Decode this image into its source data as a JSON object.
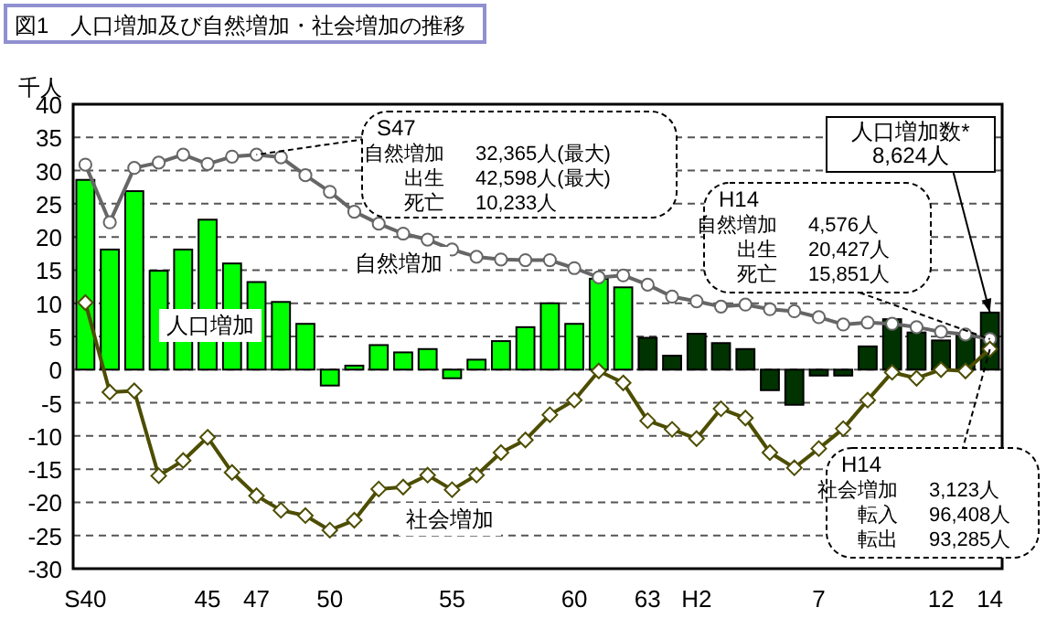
{
  "chart_data": {
    "type": "bar",
    "title": "図1　人口増加及び自然増加・社会増加の推移",
    "ylabel": "千人",
    "categories": [
      "S40",
      null,
      null,
      null,
      null,
      "45",
      null,
      "47",
      null,
      null,
      "50",
      null,
      null,
      null,
      null,
      "55",
      null,
      null,
      null,
      null,
      "60",
      null,
      null,
      "63",
      null,
      "H2",
      null,
      null,
      null,
      null,
      "7",
      null,
      null,
      null,
      null,
      "12",
      null,
      "14"
    ],
    "series": [
      {
        "name": "人口増加",
        "colors": [
          "#00ff00",
          "#00ff00",
          "#00ff00",
          "#00ff00",
          "#00ff00",
          "#00ff00",
          "#00ff00",
          "#00ff00",
          "#00ff00",
          "#00ff00",
          "#00ff00",
          "#00ff00",
          "#00ff00",
          "#00ff00",
          "#00ff00",
          "#00ff00",
          "#00ff00",
          "#00ff00",
          "#00ff00",
          "#00ff00",
          "#00ff00",
          "#00ff00",
          "#00ff00",
          "#003300",
          "#003300",
          "#003300",
          "#003300",
          "#003300",
          "#003300",
          "#003300",
          "#003300",
          "#003300",
          "#003300",
          "#003300",
          "#003300",
          "#003300",
          "#003300",
          "#003300"
        ],
        "values": [
          28.6,
          18.1,
          26.9,
          14.9,
          18.1,
          22.6,
          16.0,
          13.2,
          10.2,
          6.9,
          -2.4,
          0.6,
          3.7,
          2.6,
          3.1,
          -1.3,
          1.5,
          4.3,
          6.4,
          10.0,
          6.9,
          13.7,
          12.4,
          4.8,
          2.1,
          5.4,
          4.0,
          3.1,
          -3.1,
          -5.3,
          -0.9,
          -0.9,
          3.5,
          7.6,
          5.6,
          4.4,
          5.3,
          8.6
        ]
      },
      {
        "name": "自然増加",
        "type": "line",
        "marker": "circle",
        "color": "#666666",
        "values": [
          30.9,
          22.2,
          30.4,
          31.2,
          32.4,
          31.0,
          32.1,
          32.4,
          32.0,
          29.3,
          26.8,
          23.8,
          22.0,
          20.5,
          19.6,
          18.1,
          17.0,
          16.6,
          16.5,
          16.5,
          15.3,
          13.9,
          14.2,
          12.8,
          11.0,
          10.3,
          9.5,
          9.8,
          9.1,
          8.8,
          7.9,
          6.8,
          7.1,
          6.9,
          6.4,
          5.7,
          5.3,
          4.6
        ]
      },
      {
        "name": "社会増加",
        "type": "line",
        "marker": "diamond",
        "color": "#4d4d00",
        "values": [
          10.1,
          -3.4,
          -3.2,
          -16.0,
          -13.7,
          -10.2,
          -15.5,
          -19.0,
          -21.2,
          -22.0,
          -24.2,
          -22.7,
          -18.0,
          -17.7,
          -15.9,
          -18.1,
          -15.9,
          -12.5,
          -10.6,
          -6.8,
          -4.6,
          -0.2,
          -2.0,
          -7.7,
          -9.0,
          -10.4,
          -5.9,
          -7.3,
          -12.5,
          -14.8,
          -11.9,
          -8.9,
          -4.6,
          -0.4,
          -1.3,
          0,
          -0.2,
          3.1
        ]
      }
    ],
    "ylim": [
      -30,
      40
    ],
    "yticks": [
      -30,
      -25,
      -20,
      -15,
      -10,
      -5,
      0,
      5,
      10,
      15,
      20,
      25,
      30,
      35,
      40
    ],
    "grid": "y",
    "legend": false,
    "annotations": [
      {
        "text": "S47",
        "x": "47",
        "y": 32.4
      },
      "自然増加　32,365人(最大)",
      "出生　42,598人(最大)",
      "死亡　10,233人",
      "H14",
      "自然増加　4,576人",
      "出生　20,427人",
      "死亡　15,851人",
      {
        "text": "人口増加数*",
        "x": "14",
        "y": 8.6
      },
      "8,624人",
      "H14",
      "社会増加　3,123人",
      "転入　96,408人",
      "転出　93,285人"
    ]
  }
}
